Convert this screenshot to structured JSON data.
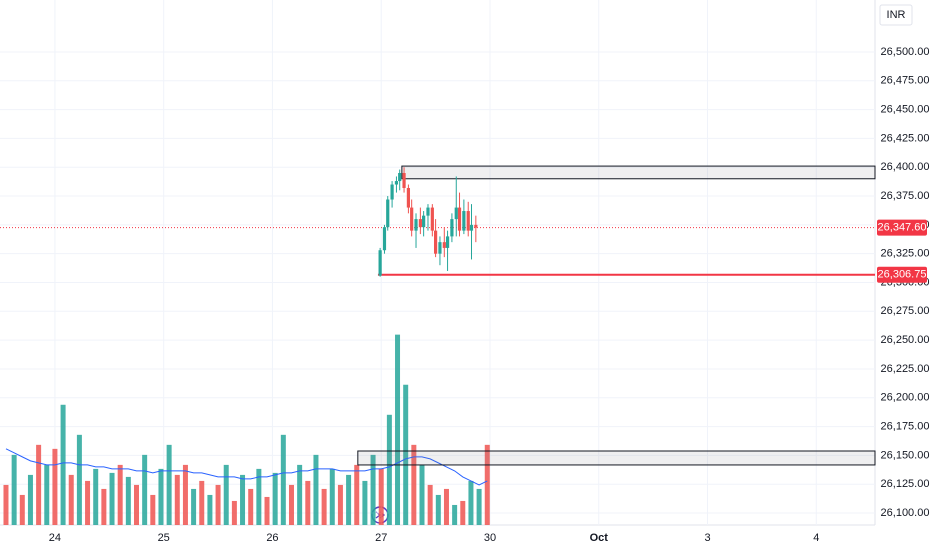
{
  "chart_data": {
    "type": "candlestick",
    "currency": "INR",
    "xlim": [
      -0.505,
      7.54
    ],
    "xticks": [
      {
        "value": 0,
        "label": "24"
      },
      {
        "value": 1,
        "label": "25"
      },
      {
        "value": 2,
        "label": "26"
      },
      {
        "value": 3,
        "label": "27"
      },
      {
        "value": 4,
        "label": "30"
      },
      {
        "value": 5,
        "label": "Oct"
      },
      {
        "value": 6,
        "label": "3"
      },
      {
        "value": 7,
        "label": "4"
      }
    ],
    "ylim": [
      26089.6,
      26545.1
    ],
    "yticks": [
      {
        "value": 26100,
        "label": "26,100.00"
      },
      {
        "value": 26125,
        "label": "26,125.00"
      },
      {
        "value": 26150,
        "label": "26,150.00"
      },
      {
        "value": 26175,
        "label": "26,175.00"
      },
      {
        "value": 26200,
        "label": "26,200.00"
      },
      {
        "value": 26225,
        "label": "26,225.00"
      },
      {
        "value": 26250,
        "label": "26,250.00"
      },
      {
        "value": 26275,
        "label": "26,275.00"
      },
      {
        "value": 26300,
        "label": "26,300.00"
      },
      {
        "value": 26325,
        "label": "26,325.00"
      },
      {
        "value": 26350,
        "label": "26,350.00"
      },
      {
        "value": 26375,
        "label": "26,375.00"
      },
      {
        "value": 26400,
        "label": "26,400.00"
      },
      {
        "value": 26425,
        "label": "26,425.00"
      },
      {
        "value": 26450,
        "label": "26,450.00"
      },
      {
        "value": 26475,
        "label": "26,475.00"
      },
      {
        "value": 26500,
        "label": "26,500.00"
      }
    ],
    "up_color": "#26a69a",
    "down_color": "#ef5350",
    "candles": {
      "x": [
        2.99,
        3.03,
        3.06,
        3.1,
        3.14,
        3.17,
        3.21,
        3.25,
        3.28,
        3.32,
        3.36,
        3.39,
        3.43,
        3.47,
        3.5,
        3.54,
        3.58,
        3.61,
        3.65,
        3.69,
        3.72,
        3.76,
        3.8,
        3.83,
        3.87
      ],
      "open": [
        26306,
        26328,
        26348,
        26372,
        26385,
        26388,
        26395,
        26382,
        26365,
        26345,
        26355,
        26348,
        26358,
        26365,
        26345,
        26325,
        26335,
        26330,
        26340,
        26355,
        26365,
        26345,
        26362,
        26345,
        26350
      ],
      "high": [
        26330,
        26350,
        26375,
        26388,
        26392,
        26398,
        26400,
        26385,
        26372,
        26360,
        26365,
        26362,
        26368,
        26368,
        26355,
        26340,
        26348,
        26345,
        26360,
        26392,
        26378,
        26372,
        26370,
        26368,
        26358
      ],
      "low": [
        26305,
        26325,
        26345,
        26365,
        26378,
        26380,
        26378,
        26360,
        26340,
        26330,
        26342,
        26340,
        26345,
        26340,
        26322,
        26315,
        26322,
        26310,
        26335,
        26340,
        26340,
        26342,
        26340,
        26320,
        26335
      ],
      "close": [
        26328,
        26348,
        26372,
        26385,
        26388,
        26395,
        26382,
        26365,
        26345,
        26355,
        26348,
        26358,
        26365,
        26345,
        26325,
        26335,
        26330,
        26340,
        26355,
        26365,
        26345,
        26362,
        26345,
        26350,
        26347.6
      ]
    },
    "volume": {
      "ylim": [
        0,
        262
      ],
      "x": [
        -0.45,
        -0.375,
        -0.3,
        -0.225,
        -0.15,
        -0.075,
        0,
        0.075,
        0.15,
        0.225,
        0.3,
        0.375,
        0.45,
        0.525,
        0.6,
        0.675,
        0.75,
        0.825,
        0.9,
        0.975,
        1.05,
        1.125,
        1.2,
        1.275,
        1.35,
        1.425,
        1.5,
        1.575,
        1.65,
        1.725,
        1.8,
        1.875,
        1.95,
        2.025,
        2.1,
        2.175,
        2.25,
        2.325,
        2.4,
        2.475,
        2.55,
        2.625,
        2.7,
        2.775,
        2.85,
        2.925,
        3,
        3.075,
        3.15,
        3.225,
        3.3,
        3.375,
        3.45,
        3.525,
        3.6,
        3.675,
        3.75,
        3.825,
        3.9,
        3.975
      ],
      "values": [
        20,
        35,
        15,
        25,
        40,
        30,
        38,
        60,
        25,
        45,
        22,
        28,
        18,
        26,
        30,
        24,
        20,
        35,
        15,
        28,
        40,
        25,
        30,
        18,
        22,
        15,
        20,
        30,
        12,
        25,
        18,
        28,
        14,
        26,
        45,
        20,
        30,
        22,
        35,
        18,
        28,
        20,
        25,
        30,
        22,
        35,
        28,
        55,
        95,
        70,
        40,
        30,
        20,
        15,
        18,
        10,
        12,
        22,
        18,
        40
      ],
      "colors": [
        "#ef5350",
        "#26a69a",
        "#ef5350",
        "#26a69a",
        "#ef5350",
        "#26a69a",
        "#ef5350",
        "#26a69a",
        "#ef5350",
        "#26a69a",
        "#ef5350",
        "#26a69a",
        "#ef5350",
        "#26a69a",
        "#ef5350",
        "#26a69a",
        "#ef5350",
        "#26a69a",
        "#ef5350",
        "#26a69a",
        "#26a69a",
        "#ef5350",
        "#ef5350",
        "#26a69a",
        "#ef5350",
        "#26a69a",
        "#ef5350",
        "#26a69a",
        "#ef5350",
        "#26a69a",
        "#ef5350",
        "#26a69a",
        "#ef5350",
        "#26a69a",
        "#26a69a",
        "#ef5350",
        "#26a69a",
        "#ef5350",
        "#26a69a",
        "#ef5350",
        "#26a69a",
        "#ef5350",
        "#26a69a",
        "#ef5350",
        "#26a69a",
        "#26a69a",
        "#ef5350",
        "#26a69a",
        "#26a69a",
        "#26a69a",
        "#ef5350",
        "#26a69a",
        "#ef5350",
        "#26a69a",
        "#ef5350",
        "#26a69a",
        "#ef5350",
        "#26a69a",
        "#26a69a",
        "#ef5350"
      ],
      "ma": [
        38,
        36,
        34,
        32,
        31,
        30,
        30,
        31,
        31,
        30,
        30,
        29,
        29,
        28,
        28,
        28,
        27,
        27,
        26,
        27,
        27,
        27,
        27,
        26,
        26,
        25,
        24,
        24,
        24,
        23,
        23,
        24,
        24,
        25,
        26,
        26,
        27,
        27,
        28,
        28,
        28,
        27,
        27,
        27,
        27,
        28,
        28,
        29,
        31,
        33,
        34,
        34,
        33,
        31,
        29,
        27,
        24,
        22,
        20,
        22
      ],
      "ma_color": "#2962ff"
    },
    "zones": [
      {
        "top": 26401,
        "bottom": 26390,
        "from": 3.19
      },
      {
        "top": 26153.8,
        "bottom": 26141.7,
        "from": 2.785
      }
    ],
    "support": {
      "value": 26306.75,
      "label": "26,306.75",
      "from": 2.97,
      "color": "#f23645"
    },
    "last_price": {
      "value": 26347.6,
      "label": "26,347.60",
      "color": "#f23645"
    }
  }
}
